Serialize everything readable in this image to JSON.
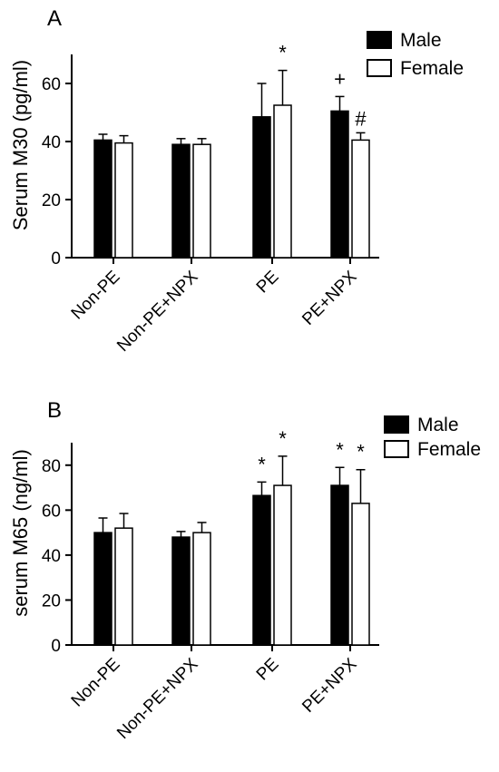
{
  "chart_data": [
    {
      "type": "bar",
      "panel_label": "A",
      "categories": [
        "Non-PE",
        "Non-PE+NPX",
        "PE",
        "PE+NPX"
      ],
      "ylabel": "Serum M30 (pg/ml)",
      "ylim": [
        0,
        70
      ],
      "yticks": [
        0,
        20,
        40,
        60
      ],
      "legend": "top-right",
      "series": [
        {
          "name": "Male",
          "color": "#000000",
          "values": [
            40.5,
            39,
            48.5,
            50.5
          ],
          "errors": [
            2,
            2,
            11.5,
            5
          ]
        },
        {
          "name": "Female",
          "color": "#ffffff",
          "values": [
            39.5,
            39,
            52.5,
            40.5
          ],
          "errors": [
            2.5,
            2,
            12,
            2.5
          ]
        }
      ],
      "annotations": [
        {
          "category": 2,
          "series": 1,
          "text": "*"
        },
        {
          "category": 3,
          "series": 0,
          "text": "+"
        },
        {
          "category": 3,
          "series": 1,
          "text": "#"
        }
      ]
    },
    {
      "type": "bar",
      "panel_label": "B",
      "categories": [
        "Non-PE",
        "Non-PE+NPX",
        "PE",
        "PE+NPX"
      ],
      "ylabel": "serum M65 (ng/ml)",
      "ylim": [
        0,
        90
      ],
      "yticks": [
        0,
        20,
        40,
        60,
        80
      ],
      "legend": "top-right",
      "series": [
        {
          "name": "Male",
          "color": "#000000",
          "values": [
            50,
            48,
            66.5,
            71
          ],
          "errors": [
            6.5,
            2.5,
            6,
            8
          ]
        },
        {
          "name": "Female",
          "color": "#ffffff",
          "values": [
            52,
            50,
            71,
            63
          ],
          "errors": [
            6.5,
            4.5,
            13,
            15
          ]
        }
      ],
      "annotations": [
        {
          "category": 2,
          "series": 0,
          "text": "*"
        },
        {
          "category": 2,
          "series": 1,
          "text": "*"
        },
        {
          "category": 3,
          "series": 0,
          "text": "*"
        },
        {
          "category": 3,
          "series": 1,
          "text": "*"
        }
      ]
    }
  ]
}
